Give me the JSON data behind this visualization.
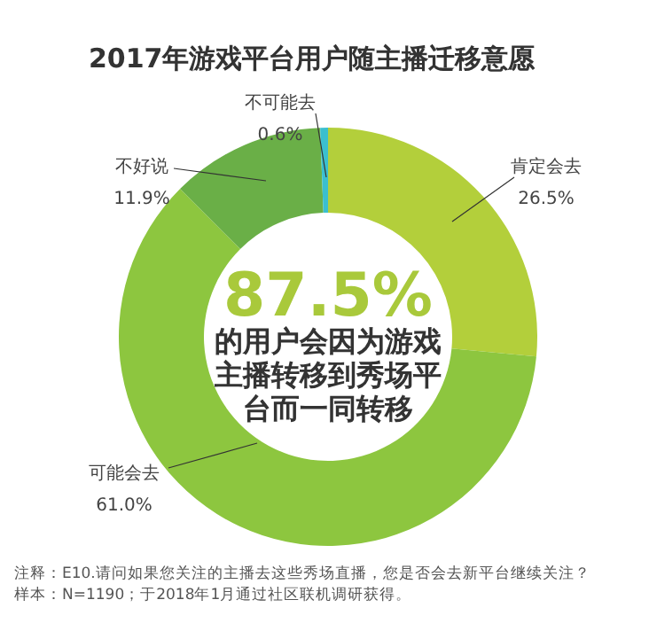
{
  "chart_data": {
    "type": "donut",
    "title": "2017年游戏平台用户随主播迁移意愿",
    "categories": [
      "肯定会去",
      "可能会去",
      "不好说",
      "不可能去"
    ],
    "values": [
      26.5,
      61.0,
      11.9,
      0.6
    ],
    "colors": [
      "#b3cf3b",
      "#8dc63f",
      "#6aaf47",
      "#3bbfcf"
    ],
    "value_labels": [
      "26.5%",
      "61.0%",
      "11.9%",
      "0.6%"
    ],
    "annotations": [
      "87.5%",
      "的用户会因为游戏主播转移到秀场平台而一同转移",
      "注释：E10.请问如果您关注的主播去这些秀场直播，您是否会去新平台继续关注？",
      "样本：N=1190；于2018年1月通过社区联机调研获得。"
    ]
  }
}
